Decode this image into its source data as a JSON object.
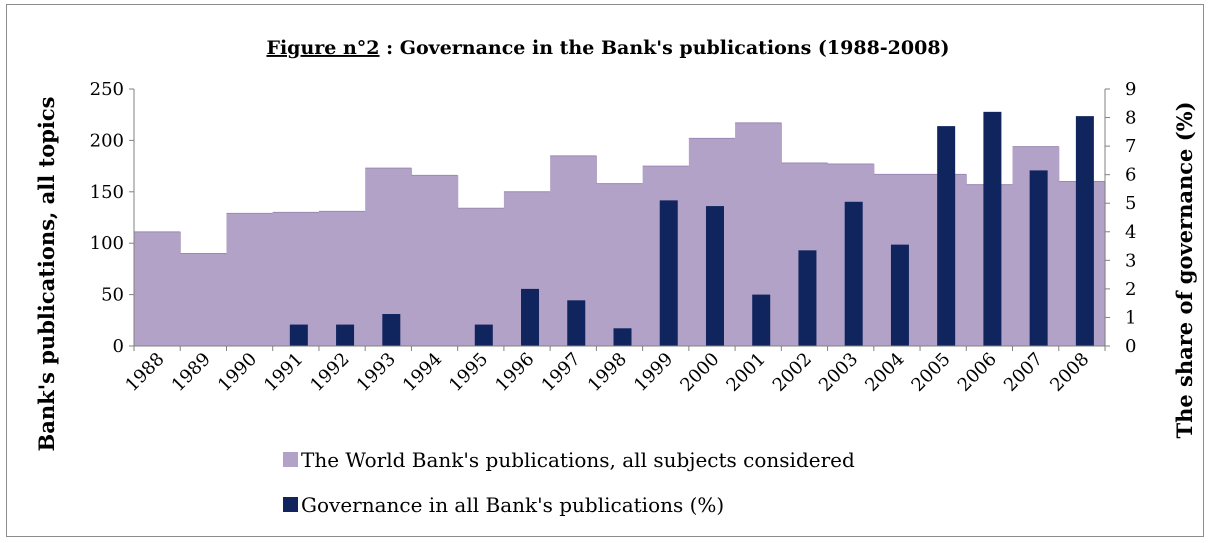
{
  "chart_data": {
    "type": "bar",
    "title_prefix": "Figure n°2",
    "title": " : Governance in the Bank's publications (1988-2008)",
    "ylabel": "Bank's publications, all topics",
    "y2label": "The share of governance (%)",
    "categories": [
      "1988",
      "1989",
      "1990",
      "1991",
      "1992",
      "1993",
      "1994",
      "1995",
      "1996",
      "1997",
      "1998",
      "1999",
      "2000",
      "2001",
      "2002",
      "2003",
      "2004",
      "2005",
      "2006",
      "2007",
      "2008"
    ],
    "ylim": [
      0,
      250
    ],
    "y2lim": [
      0,
      9
    ],
    "yticks": [
      0,
      50,
      100,
      150,
      200,
      250
    ],
    "y2ticks": [
      0,
      1,
      2,
      3,
      4,
      5,
      6,
      7,
      8,
      9
    ],
    "series": [
      {
        "name": "The World Bank's publications, all subjects considered",
        "axis": "left",
        "style": "wide",
        "color": "#b3a2c7",
        "values": [
          111,
          90,
          129,
          130,
          131,
          173,
          166,
          134,
          150,
          185,
          158,
          175,
          202,
          217,
          178,
          177,
          167,
          167,
          157,
          194,
          160
        ]
      },
      {
        "name": "Governance in all Bank's publications (%)",
        "axis": "right",
        "style": "narrow",
        "color": "#10245e",
        "values": [
          0,
          0,
          0,
          0.75,
          0.75,
          1.12,
          0,
          0.75,
          2.0,
          1.6,
          0.62,
          5.1,
          4.9,
          1.8,
          3.35,
          5.05,
          3.55,
          7.7,
          8.2,
          6.15,
          8.05
        ]
      }
    ],
    "legend_position": "bottom",
    "grid": false
  }
}
